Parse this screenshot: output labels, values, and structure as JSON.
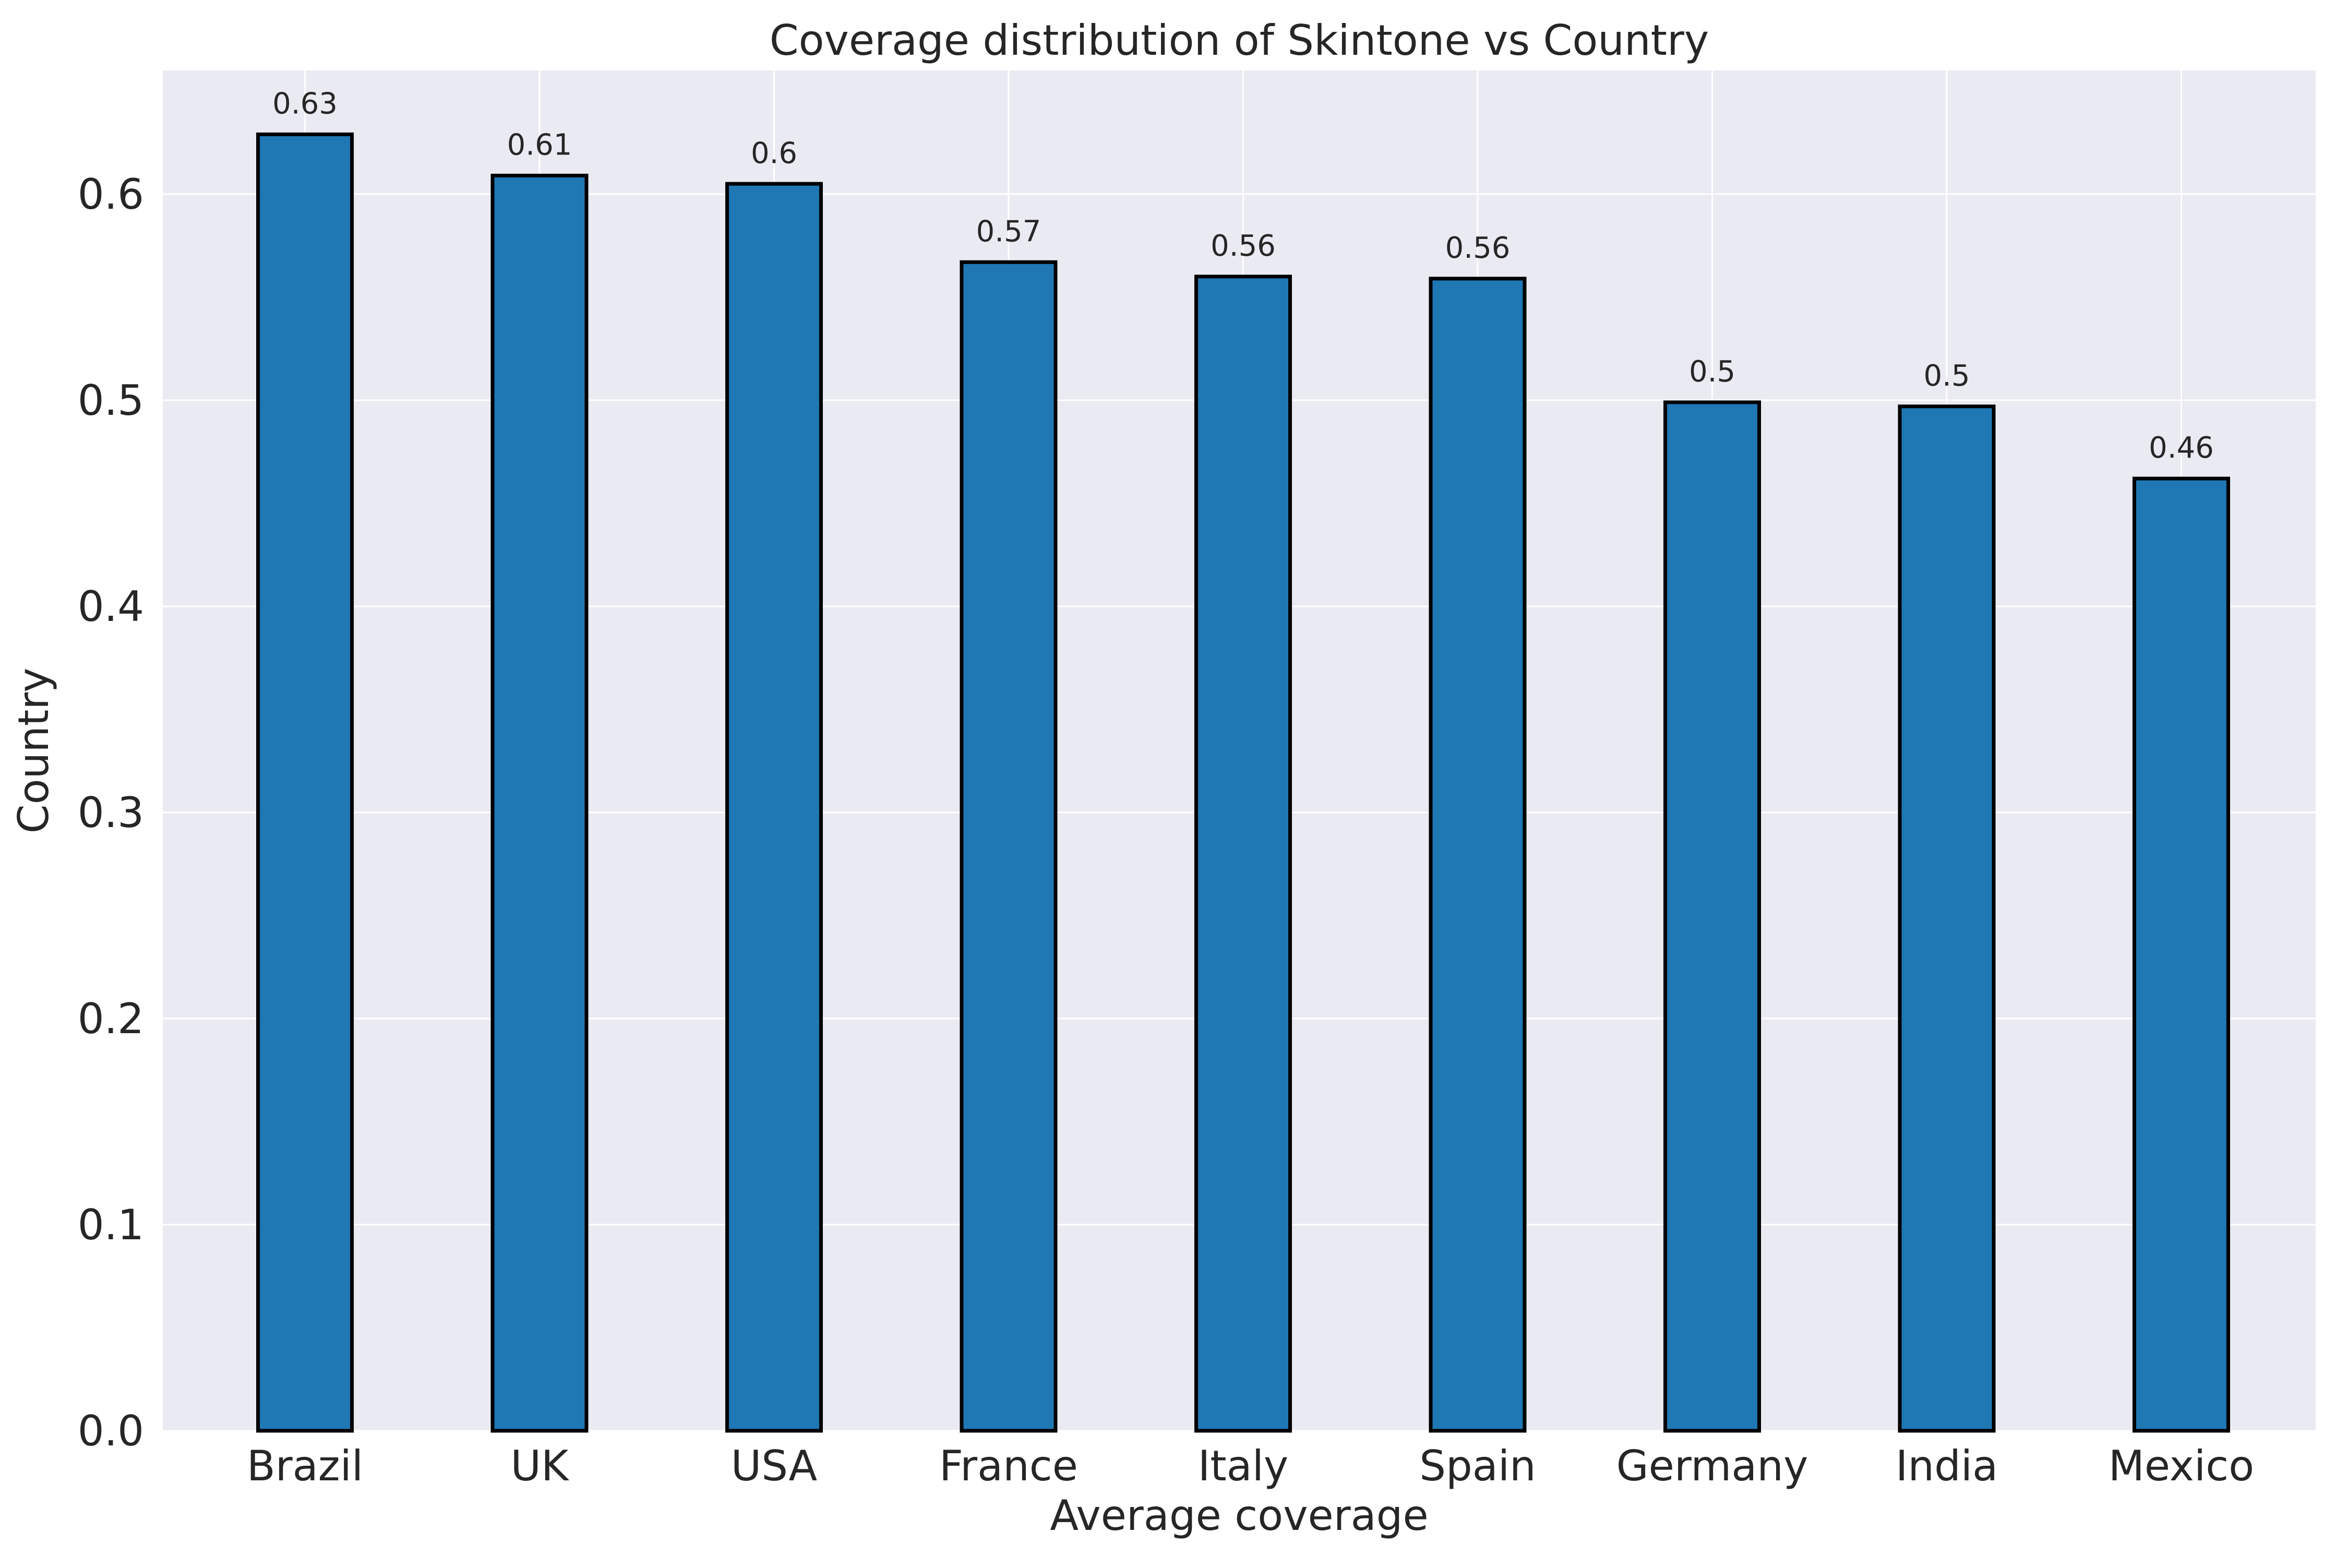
{
  "chart_data": {
    "type": "bar",
    "title": "Coverage distribution of Skintone vs Country",
    "xlabel": "Average coverage",
    "ylabel": "Country",
    "categories": [
      "Brazil",
      "UK",
      "USA",
      "France",
      "Italy",
      "Spain",
      "Germany",
      "India",
      "Mexico"
    ],
    "values": [
      0.629,
      0.609,
      0.605,
      0.567,
      0.56,
      0.559,
      0.499,
      0.497,
      0.462
    ],
    "data_labels": [
      "0.63",
      "0.61",
      "0.6",
      "0.57",
      "0.56",
      "0.56",
      "0.5",
      "0.5",
      "0.46"
    ],
    "y_ticks": [
      "0.0",
      "0.1",
      "0.2",
      "0.3",
      "0.4",
      "0.5",
      "0.6"
    ],
    "ylim": [
      0,
      0.66
    ],
    "grid": true,
    "colors": {
      "bar": "#1f77b4",
      "bar_edge": "#000000",
      "plot_background": "#eaeaf2",
      "grid": "#ffffff",
      "page_background": "#ffffff"
    }
  }
}
